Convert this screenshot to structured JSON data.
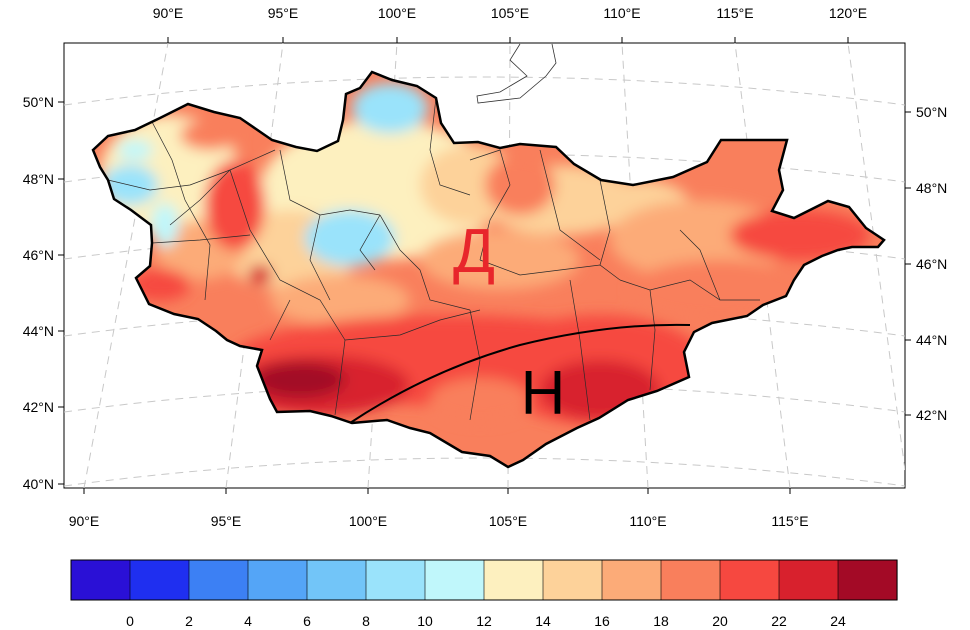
{
  "map": {
    "bottom_lon_labels": [
      "90°E",
      "95°E",
      "100°E",
      "105°E",
      "110°E",
      "115°E"
    ],
    "top_lon_labels": [
      "90°E",
      "95°E",
      "100°E",
      "105°E",
      "110°E",
      "115°E",
      "120°E"
    ],
    "left_lat_labels": [
      "40°N",
      "42°N",
      "44°N",
      "46°N",
      "48°N",
      "50°N"
    ],
    "right_lat_labels": [
      "42°N",
      "44°N",
      "46°N",
      "48°N",
      "50°N"
    ],
    "north_letter": "Д",
    "south_letter": "Н",
    "north_letter_color": "#e8262b",
    "south_letter_color": "#000000"
  },
  "colorbar": {
    "labels": [
      "0",
      "2",
      "4",
      "6",
      "8",
      "10",
      "12",
      "14",
      "16",
      "18",
      "20",
      "22",
      "24"
    ],
    "colors": [
      "#2a10d6",
      "#1f2ff0",
      "#3c80f4",
      "#54a5f7",
      "#72c5f8",
      "#9ae3fb",
      "#c0f7fb",
      "#fdf0bf",
      "#fdd29a",
      "#fcab78",
      "#f97f5c",
      "#f64840",
      "#d8212d",
      "#a30a26"
    ]
  }
}
